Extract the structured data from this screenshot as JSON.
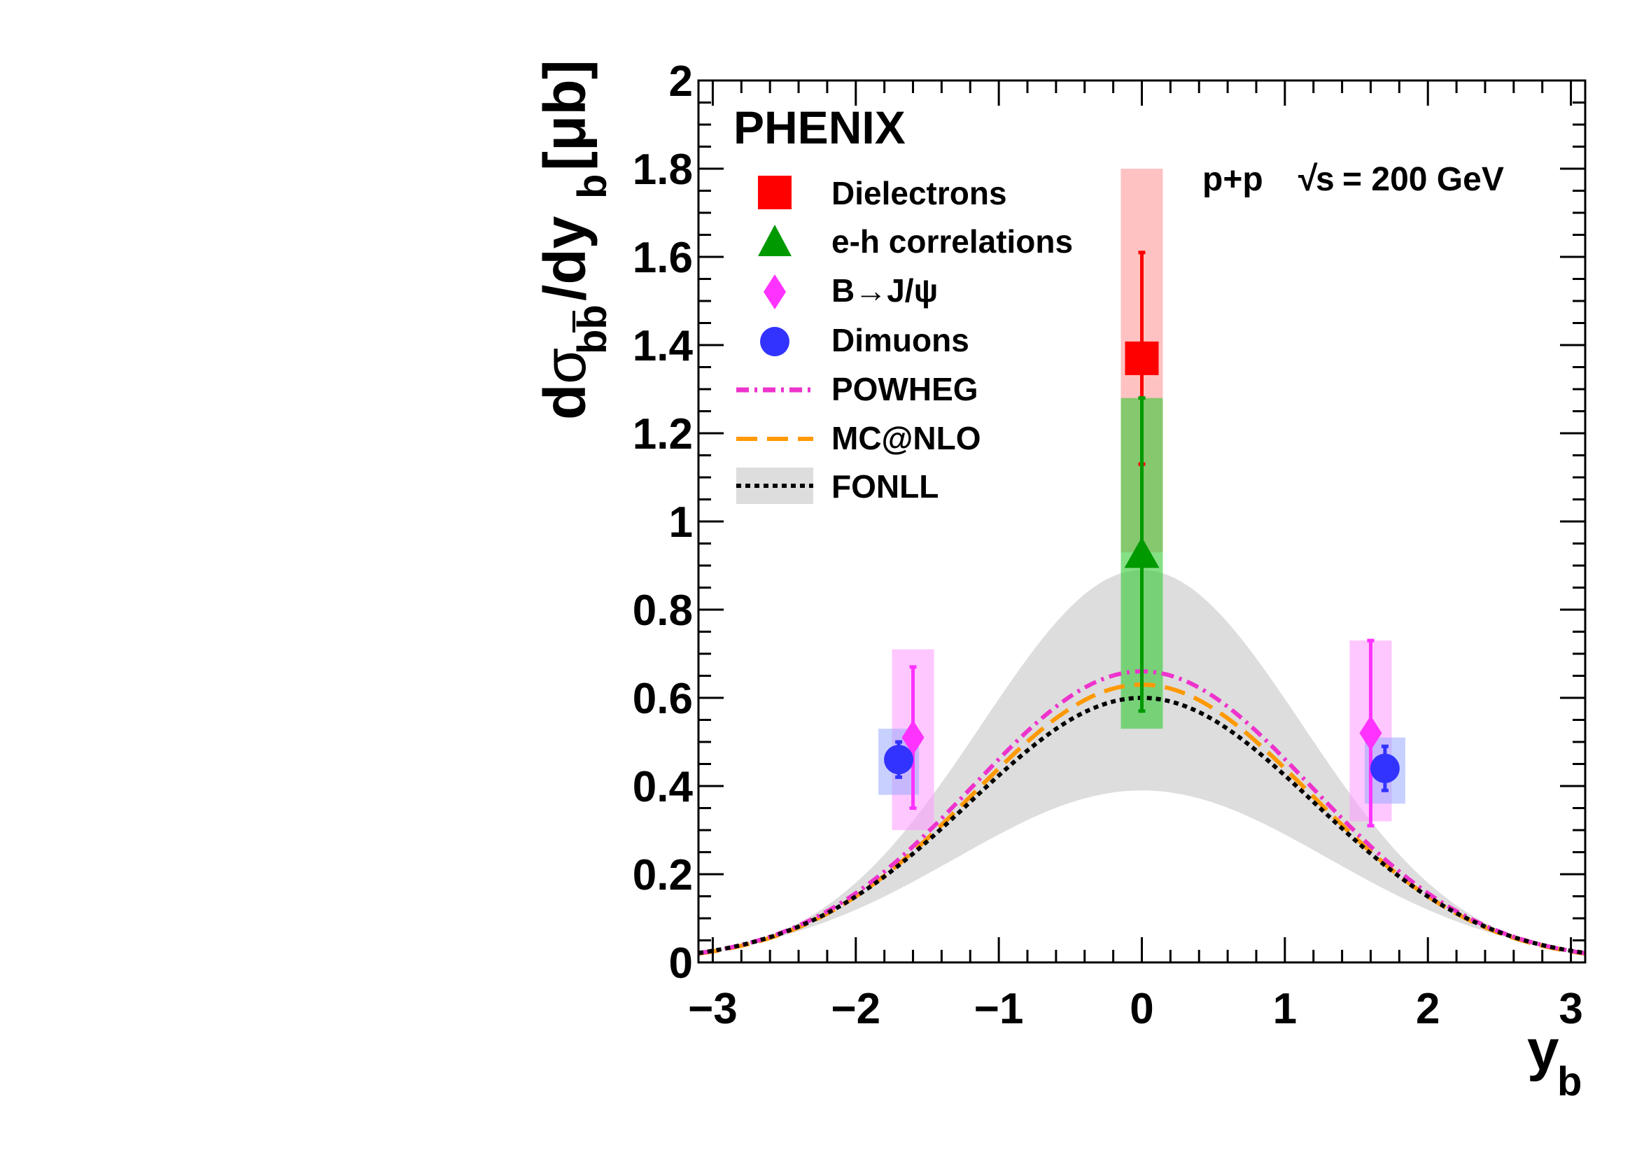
{
  "chart_data": {
    "type": "scatter",
    "experiment": "PHENIX",
    "system_label": "p+p",
    "energy_label": "= 200 GeV",
    "energy_sqrt": "√",
    "energy_s": "s",
    "xlabel_main": "y",
    "xlabel_sub": "b",
    "ylabel_d": "d",
    "ylabel_sigma": "σ",
    "ylabel_sub": "bb",
    "ylabel_slash": "/dy",
    "ylabel_sub2": "b",
    "ylabel_unit": "[μb]",
    "xlim": [
      -3.1,
      3.1
    ],
    "ylim": [
      0,
      2
    ],
    "x_ticks": [
      -3,
      -2,
      -1,
      0,
      1,
      2,
      3
    ],
    "x_tick_labels": [
      "−3",
      "−2",
      "−1",
      "0",
      "1",
      "2",
      "3"
    ],
    "y_ticks": [
      0,
      0.2,
      0.4,
      0.6,
      0.8,
      1,
      1.2,
      1.4,
      1.6,
      1.8,
      2
    ],
    "y_tick_labels": [
      "0",
      "0.2",
      "0.4",
      "0.6",
      "0.8",
      "1",
      "1.2",
      "1.4",
      "1.6",
      "1.8",
      "2"
    ],
    "legend": [
      {
        "label": "Dielectrons",
        "marker": "square",
        "color": "#ff0000"
      },
      {
        "label": "e-h correlations",
        "marker": "triangle",
        "color": "#009900"
      },
      {
        "label": "B→J/ψ",
        "marker": "diamond",
        "color": "#ff33ff"
      },
      {
        "label": "Dimuons",
        "marker": "circle",
        "color": "#3333ff"
      },
      {
        "label": "POWHEG",
        "marker": "dashdot",
        "color": "#ee33cc"
      },
      {
        "label": "MC@NLO",
        "marker": "dash",
        "color": "#ff9900"
      },
      {
        "label": "FONLL",
        "marker": "dotband",
        "color": "#000000"
      }
    ],
    "points": [
      {
        "series": "Dielectrons",
        "x": 0.0,
        "y": 1.37,
        "stat_lo": 1.13,
        "stat_hi": 1.61,
        "sys_lo": 0.93,
        "sys_hi": 1.8,
        "color": "#ff0000",
        "band_color": "#ff9999",
        "marker": "square"
      },
      {
        "series": "e-h correlations",
        "x": 0.0,
        "y": 0.92,
        "stat_lo": 0.57,
        "stat_hi": 1.28,
        "sys_lo": 0.53,
        "sys_hi": 1.28,
        "color": "#009900",
        "band_color": "#33cc33",
        "marker": "triangle"
      },
      {
        "series": "B→J/ψ",
        "x": -1.6,
        "y": 0.51,
        "stat_lo": 0.35,
        "stat_hi": 0.67,
        "sys_lo": 0.3,
        "sys_hi": 0.71,
        "color": "#ff33ff",
        "band_color": "#ff99ff",
        "marker": "diamond"
      },
      {
        "series": "B→J/ψ",
        "x": 1.6,
        "y": 0.52,
        "stat_lo": 0.31,
        "stat_hi": 0.73,
        "sys_lo": 0.32,
        "sys_hi": 0.73,
        "color": "#ff33ff",
        "band_color": "#ff99ff",
        "marker": "diamond"
      },
      {
        "series": "Dimuons",
        "x": -1.7,
        "y": 0.46,
        "stat_lo": 0.42,
        "stat_hi": 0.5,
        "sys_lo": 0.38,
        "sys_hi": 0.53,
        "color": "#3333ff",
        "band_color": "#99aaff",
        "marker": "circle"
      },
      {
        "series": "Dimuons",
        "x": 1.7,
        "y": 0.44,
        "stat_lo": 0.39,
        "stat_hi": 0.49,
        "sys_lo": 0.36,
        "sys_hi": 0.51,
        "color": "#3333ff",
        "band_color": "#99aaff",
        "marker": "circle"
      }
    ],
    "curves": {
      "POWHEG": {
        "peak": 0.66,
        "sigma": 1.18,
        "color": "#ee33cc"
      },
      "MC@NLO": {
        "peak": 0.63,
        "sigma": 1.18,
        "color": "#ff9900"
      },
      "FONLL": {
        "peak": 0.6,
        "sigma": 1.2,
        "color": "#000000"
      },
      "FONLL_band": {
        "peak_hi": 0.89,
        "sigma_hi": 1.12,
        "peak_lo": 0.39,
        "sigma_lo": 1.3,
        "color": "#dddddd"
      }
    }
  }
}
